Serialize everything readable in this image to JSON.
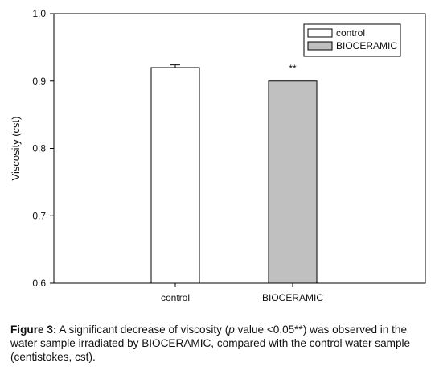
{
  "chart_data": {
    "type": "bar",
    "categories": [
      "control",
      "BIOCERAMIC"
    ],
    "series": [
      {
        "name": "control",
        "values": [
          0.92,
          null
        ],
        "error": [
          0.004,
          null
        ],
        "fill": "#ffffff"
      },
      {
        "name": "BIOCERAMIC",
        "values": [
          null,
          0.9
        ],
        "error": [
          null,
          0.0
        ],
        "fill": "#c0c0c0"
      }
    ],
    "ylabel": "Viscosity (cst)",
    "ylim": [
      0.6,
      1.0
    ],
    "yticks": [
      "0.6",
      "0.7",
      "0.8",
      "0.9",
      "1.0"
    ],
    "annotations": [
      {
        "category": "BIOCERAMIC",
        "text": "**"
      }
    ],
    "legend": {
      "placement": "top-right",
      "entries": [
        "control",
        "BIOCERAMIC"
      ]
    },
    "grid": false
  },
  "caption": {
    "label": "Figure 3:",
    "text_before_p": " A significant decrease of viscosity (",
    "p_text": "p",
    "text_after_p": " value <0.05**) was observed in the water sample irradiated by BIOCERAMIC, compared with the control water sample (centistokes, cst)."
  }
}
